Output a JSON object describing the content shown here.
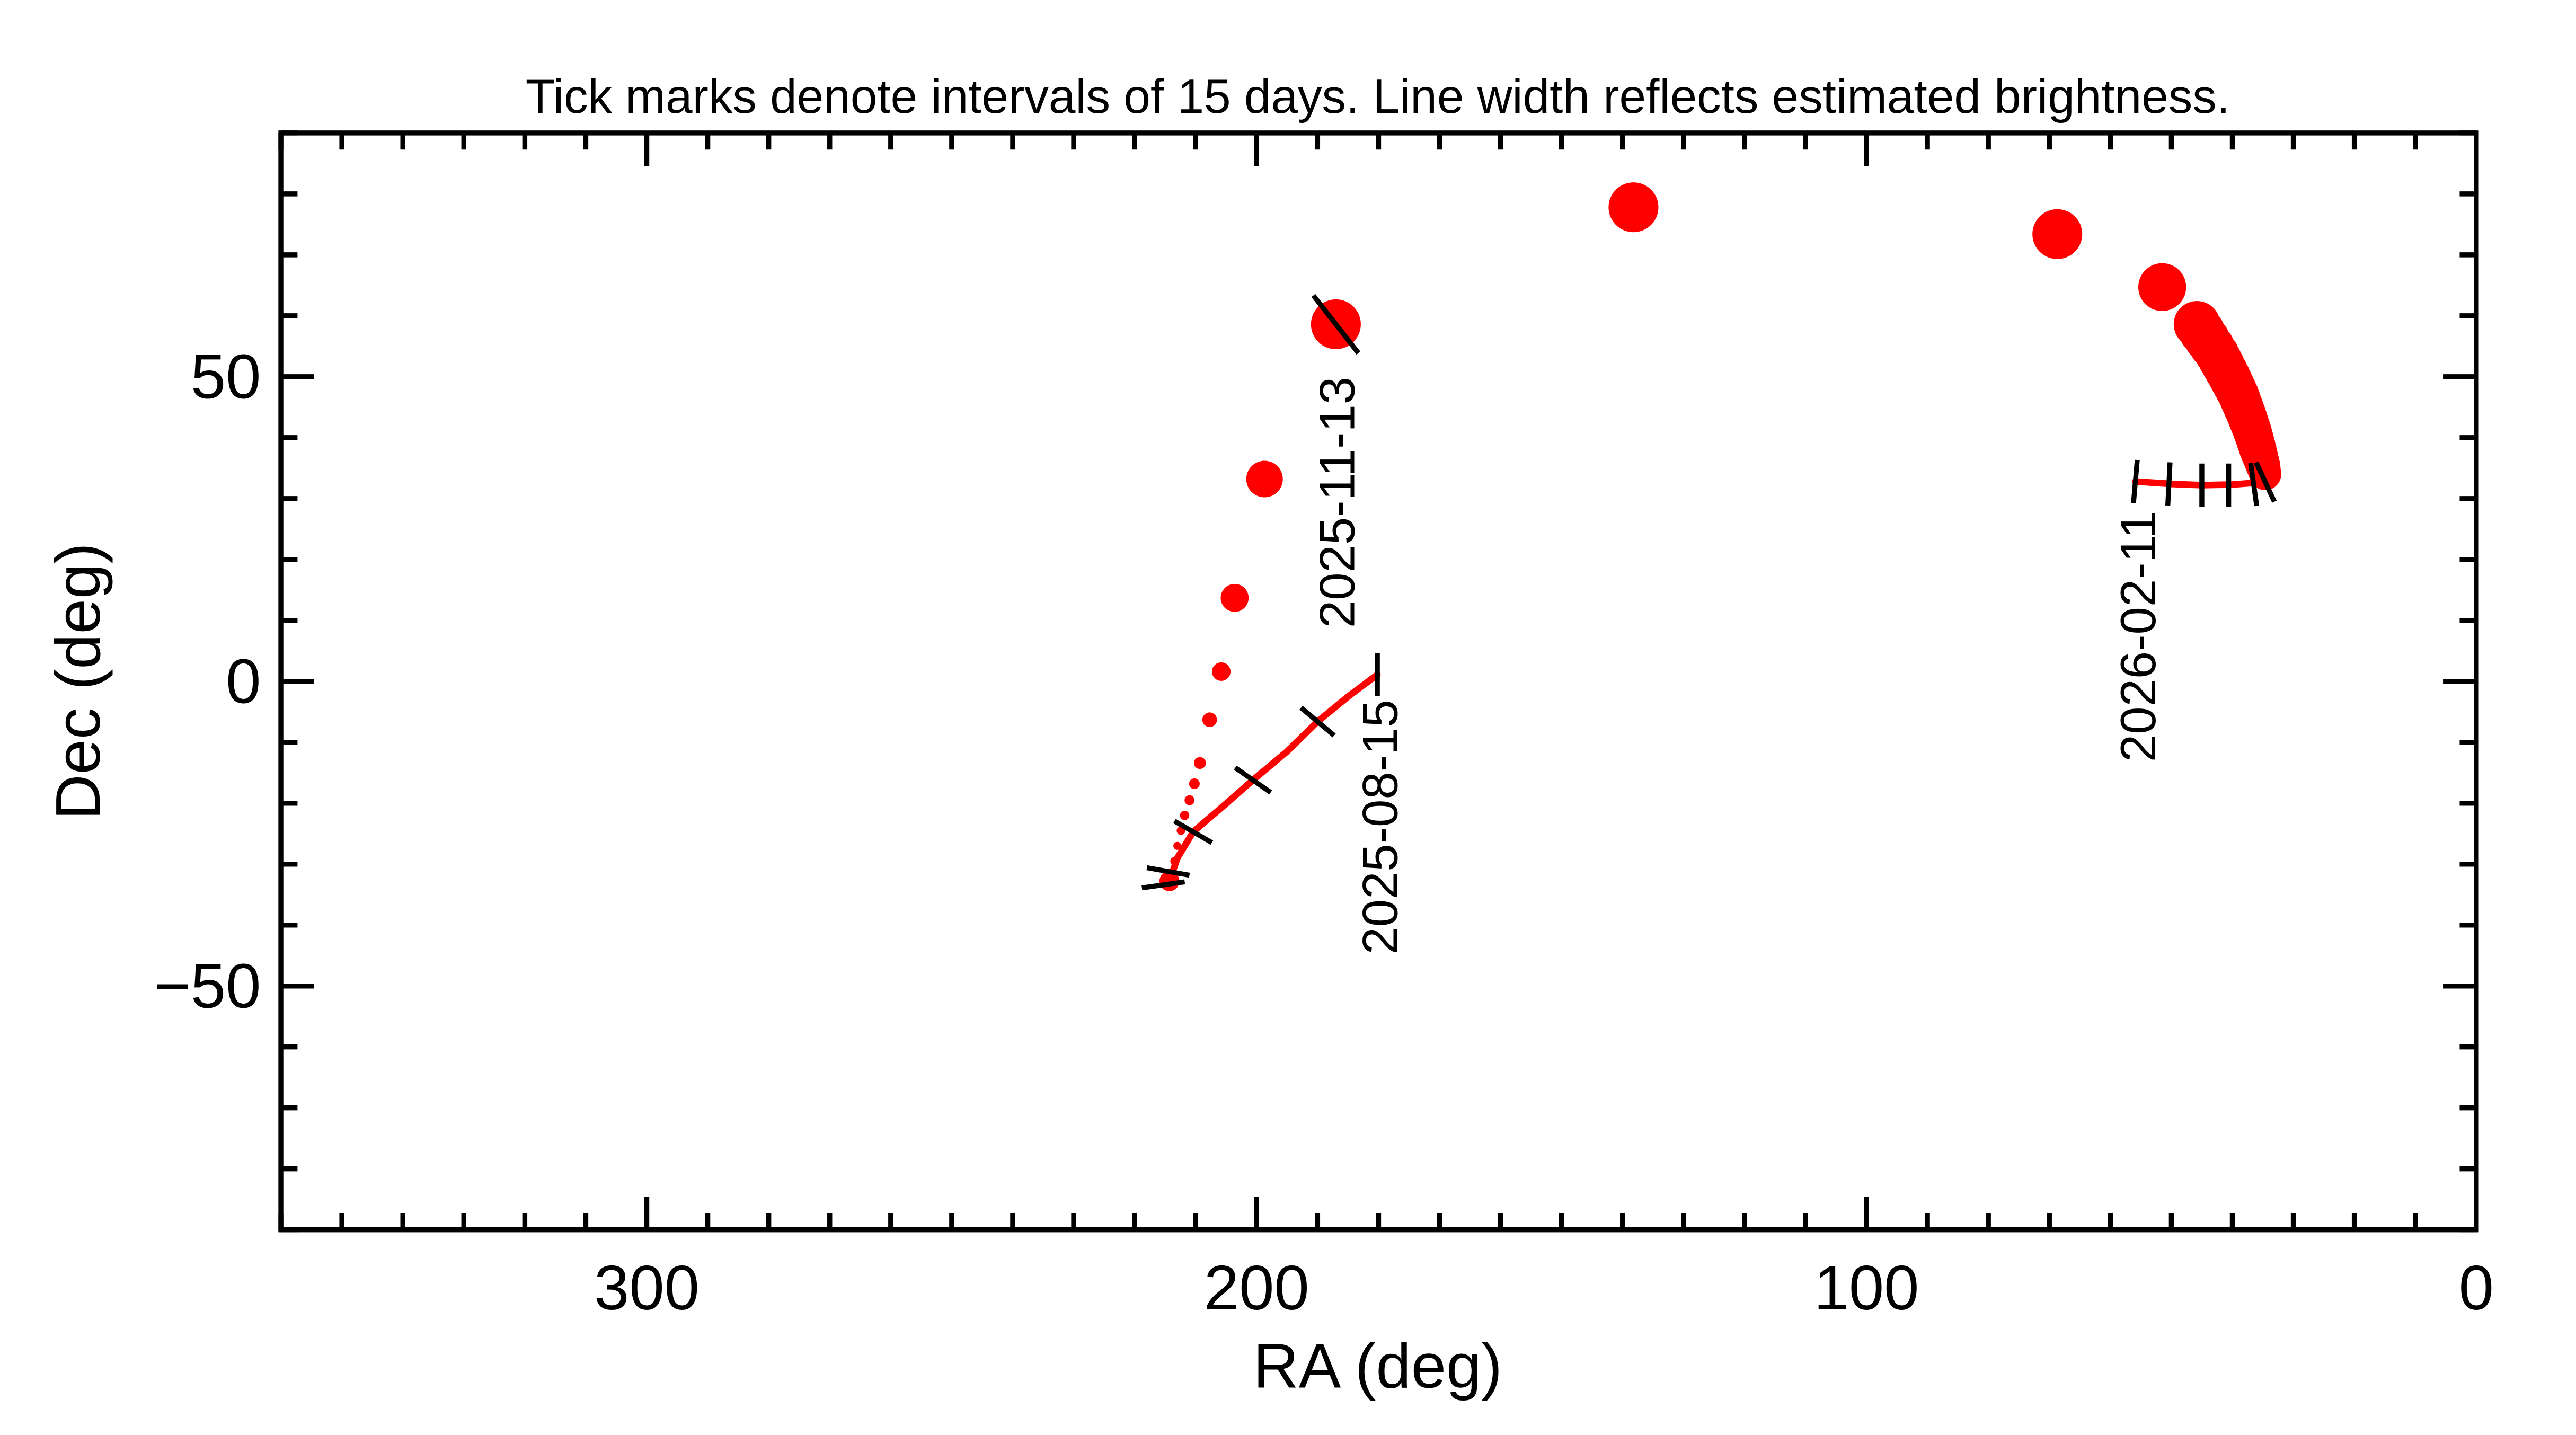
{
  "chart_data": {
    "type": "line",
    "title": "Tick marks denote intervals of 15 days.  Line width reflects estimated brightness.",
    "xlabel": "RA (deg)",
    "ylabel": "Dec (deg)",
    "xlim": [
      360,
      0
    ],
    "ylim": [
      -90,
      90
    ],
    "x_ticks": [
      300,
      200,
      100,
      0
    ],
    "y_ticks": [
      50,
      0,
      -50
    ],
    "y_tick_labels": [
      "50",
      "0",
      "−50"
    ],
    "grid": false,
    "colors": {
      "track": "#ff0000",
      "ticks": "#000000"
    },
    "track_segments": [
      {
        "ra": [
          180.2,
          185,
          190,
          195,
          200.6,
          205.5,
          210.4,
          213,
          214.3
        ],
        "dec": [
          1.1,
          -2.5,
          -6.6,
          -11.5,
          -16.2,
          -20.5,
          -24.7,
          -29,
          -32.8
        ],
        "brightness": 2
      },
      {
        "ra": [
          34.6,
          36,
          40,
          45,
          50,
          55.9
        ],
        "dec": [
          33.5,
          32.6,
          32.3,
          32.2,
          32.4,
          32.8
        ],
        "brightness": 2
      }
    ],
    "track_points": [
      {
        "ra": 214.3,
        "dec": -32.8,
        "brightness": 3
      },
      {
        "ra": 213.5,
        "dec": -29.5,
        "brightness": 1.2
      },
      {
        "ra": 213.0,
        "dec": -27.0,
        "brightness": 1.2
      },
      {
        "ra": 212.4,
        "dec": -24.5,
        "brightness": 1.3
      },
      {
        "ra": 211.8,
        "dec": -22.0,
        "brightness": 1.4
      },
      {
        "ra": 211.0,
        "dec": -19.5,
        "brightness": 1.5
      },
      {
        "ra": 210.2,
        "dec": -16.8,
        "brightness": 1.6
      },
      {
        "ra": 209.3,
        "dec": -13.4,
        "brightness": 1.8
      },
      {
        "ra": 207.7,
        "dec": -6.3,
        "brightness": 2.2
      },
      {
        "ra": 205.8,
        "dec": 1.6,
        "brightness": 2.8
      },
      {
        "ra": 203.6,
        "dec": 13.7,
        "brightness": 4.2
      },
      {
        "ra": 198.7,
        "dec": 33.2,
        "brightness": 5.5
      },
      {
        "ra": 187.0,
        "dec": 58.6,
        "brightness": 7.5
      },
      {
        "ra": 138.2,
        "dec": 77.8,
        "brightness": 7.5
      },
      {
        "ra": 68.7,
        "dec": 73.4,
        "brightness": 7.5
      },
      {
        "ra": 51.5,
        "dec": 64.7,
        "brightness": 7.2
      },
      {
        "ra": 45.8,
        "dec": 58.6,
        "brightness": 7.0
      },
      {
        "ra": 42.5,
        "dec": 53.7,
        "brightness": 6.6
      },
      {
        "ra": 40.5,
        "dec": 50.0,
        "brightness": 6.4
      },
      {
        "ra": 39.0,
        "dec": 47.0,
        "brightness": 6.2
      },
      {
        "ra": 37.8,
        "dec": 44.0,
        "brightness": 6.0
      },
      {
        "ra": 36.7,
        "dec": 41.0,
        "brightness": 5.8
      },
      {
        "ra": 35.8,
        "dec": 38.0,
        "brightness": 5.6
      },
      {
        "ra": 35.0,
        "dec": 35.5,
        "brightness": 5.2
      },
      {
        "ra": 34.6,
        "dec": 34.0,
        "brightness": 4.8
      }
    ],
    "tick_marks_15day": [
      {
        "ra": 180.2,
        "dec": 1.1,
        "angle": 90
      },
      {
        "ra": 190.0,
        "dec": -6.6,
        "angle": 40
      },
      {
        "ra": 200.6,
        "dec": -16.2,
        "angle": 35
      },
      {
        "ra": 210.4,
        "dec": -24.7,
        "angle": 30
      },
      {
        "ra": 214.5,
        "dec": -31.2,
        "angle": 10
      },
      {
        "ra": 215.3,
        "dec": -33.4,
        "angle": -8
      },
      {
        "ra": 187.0,
        "dec": 58.6,
        "angle": 52
      },
      {
        "ra": 55.9,
        "dec": 32.8,
        "angle": 95
      },
      {
        "ra": 50.4,
        "dec": 32.4,
        "angle": 93
      },
      {
        "ra": 45.0,
        "dec": 32.2,
        "angle": 90
      },
      {
        "ra": 40.6,
        "dec": 32.2,
        "angle": 90
      },
      {
        "ra": 36.5,
        "dec": 32.3,
        "angle": 82
      },
      {
        "ra": 34.6,
        "dec": 32.7,
        "angle": 65
      }
    ],
    "date_labels": [
      {
        "text": "2025-08-15",
        "ra": 180.2,
        "dec": -3
      },
      {
        "text": "2025-11-13",
        "ra": 187.0,
        "dec": 50
      },
      {
        "text": "2026-02-11",
        "ra": 55.9,
        "dec": 28
      }
    ]
  }
}
